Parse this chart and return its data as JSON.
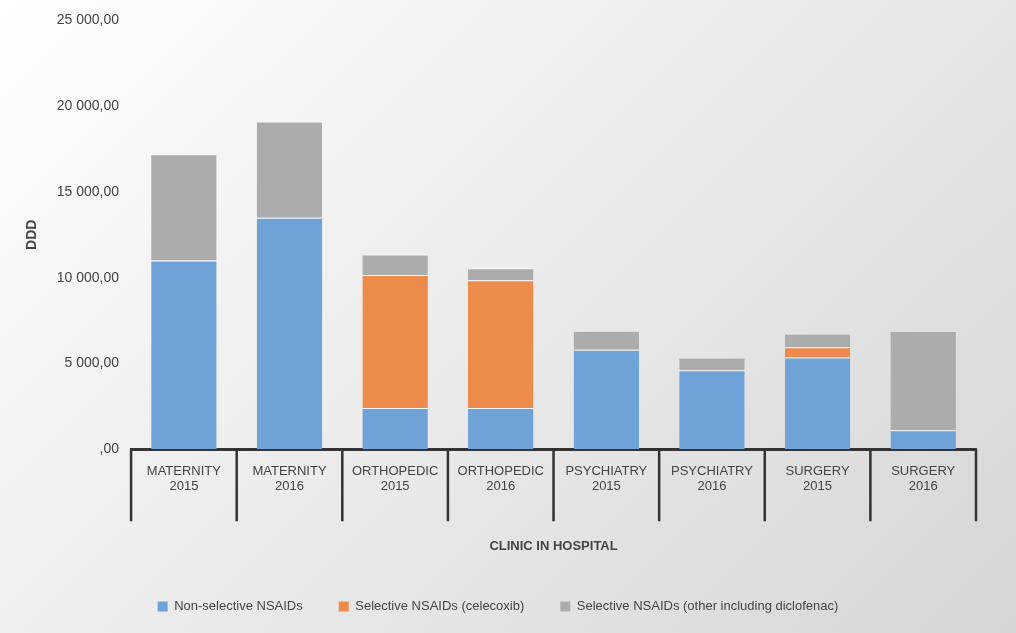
{
  "chart_data": {
    "type": "bar",
    "stacked": true,
    "xlabel": "CLINIC IN HOSPITAL",
    "ylabel": "DDD",
    "categories": [
      "MATERNITY\n2015",
      "MATERNITY\n2016",
      "ORTHOPEDIC\n2015",
      "ORTHOPEDIC\n2016",
      "PSYCHIATRY\n2015",
      "PSYCHIATRY\n2016",
      "SURGERY\n2015",
      "SURGERY\n2016"
    ],
    "series": [
      {
        "name": "Non-selective NSAIDs",
        "color": "#6fa3d8",
        "values": [
          11000,
          13500,
          2400,
          2400,
          5800,
          4600,
          5350,
          1100
        ]
      },
      {
        "name": "Selective NSAIDs (celecoxib)",
        "color": "#ec8b4b",
        "values": [
          null,
          null,
          7750,
          7450,
          null,
          null,
          600,
          null
        ]
      },
      {
        "name": "Selective NSAIDs (other including diclofenac)",
        "color": "#acacac",
        "values": [
          6200,
          5600,
          1200,
          700,
          1100,
          750,
          800,
          5800
        ]
      }
    ],
    "ylim": [
      0,
      25000
    ],
    "yticks": [
      {
        "value": 0,
        "label": ",00"
      },
      {
        "value": 5000,
        "label": "5 000,00"
      },
      {
        "value": 10000,
        "label": "10 000,00"
      },
      {
        "value": 15000,
        "label": "15 000,00"
      },
      {
        "value": 20000,
        "label": "20 000,00"
      },
      {
        "value": 25000,
        "label": "25 000,00"
      }
    ],
    "grid": false,
    "legend": "bottom"
  }
}
